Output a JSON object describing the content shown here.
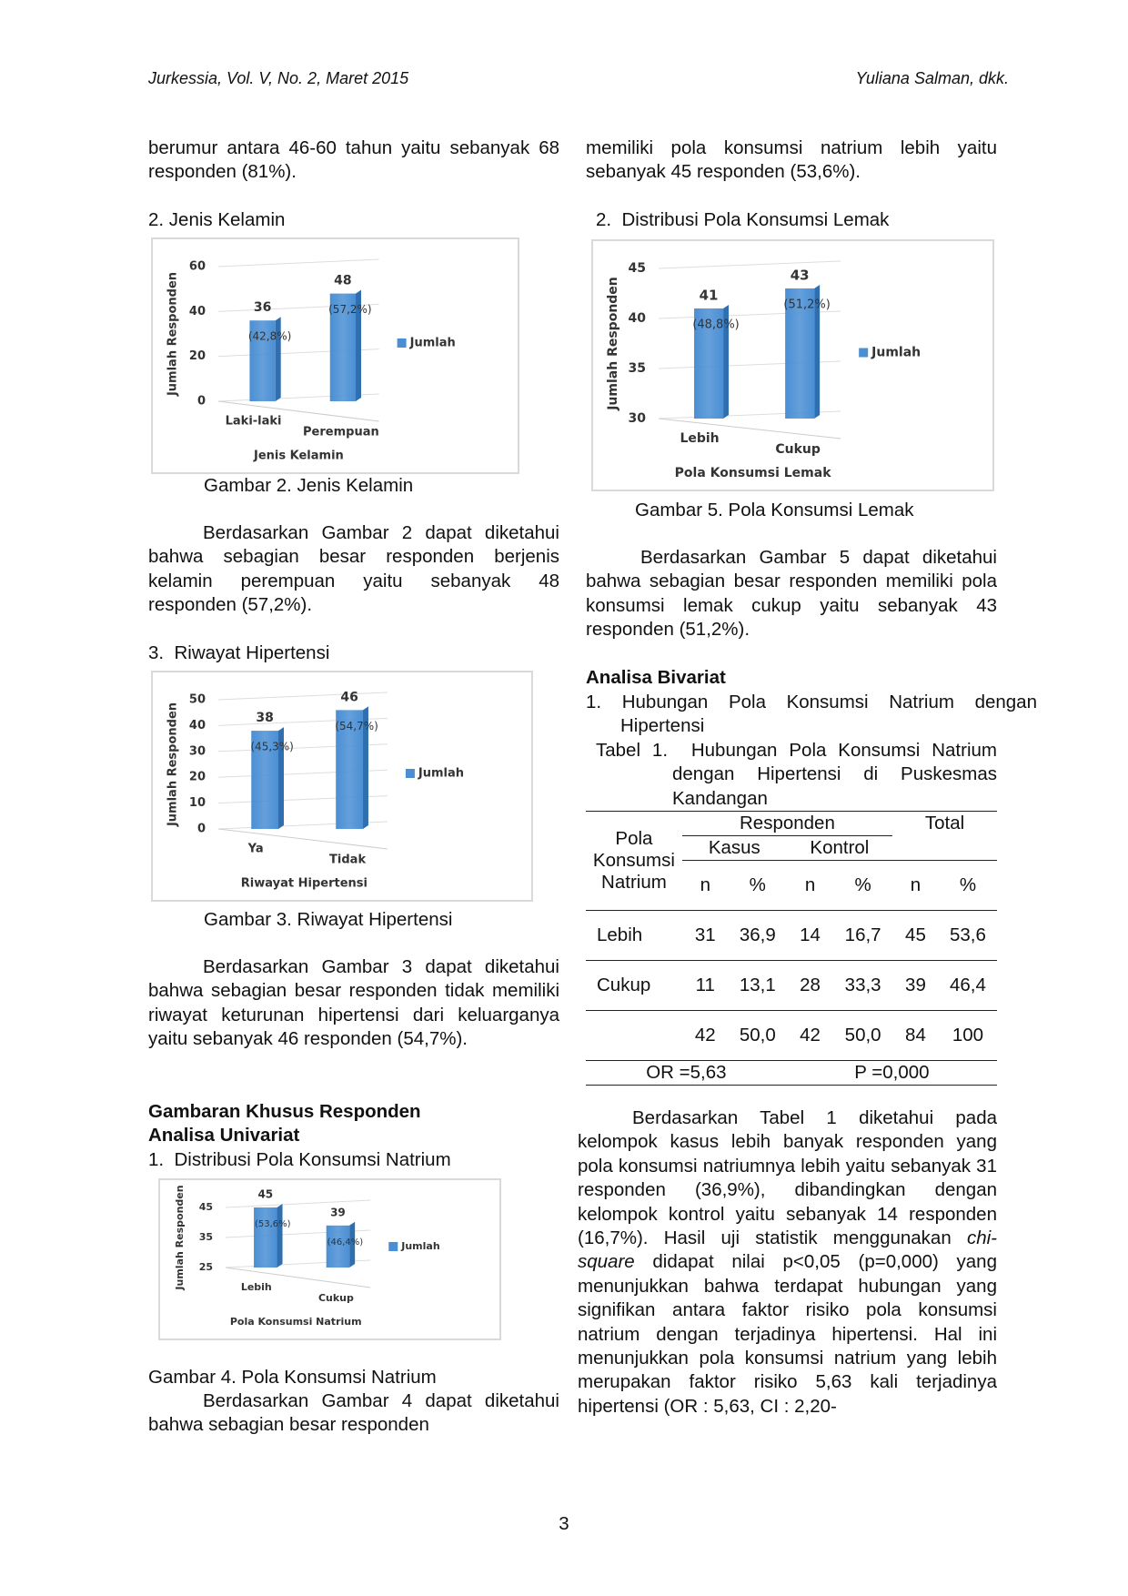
{
  "header": {
    "journal": "Jurkessia, Vol. V, No. 2, Maret 2015",
    "authors": "Yuliana Salman, dkk."
  },
  "left": {
    "p1": "berumur antara 46-60 tahun yaitu sebanyak 68 responden (81%).",
    "h_jk": "2. Jenis Kelamin",
    "p_jk": "Berdasarkan Gambar 2 dapat diketahui bahwa sebagian besar responden berjenis kelamin perempuan yaitu sebanyak 48 responden (57,2%).",
    "h_rh": "3.  Riwayat Hipertensi",
    "p_rh": "Berdasarkan Gambar 3 dapat diketahui bahwa sebagian besar responden tidak memiliki riwayat keturunan hipertensi dari keluarganya yaitu sebanyak 46 responden (54,7%).",
    "h_khusus": "Gambaran Khusus Responden",
    "h_univariat": "Analisa Univariat",
    "h_natrium": "1.  Distribusi Pola Konsumsi Natrium",
    "p_natrium": "Berdasarkan Gambar 4 dapat diketahui bahwa sebagian besar responden"
  },
  "right": {
    "p1": "memiliki pola konsumsi natrium lebih yaitu sebanyak 45 responden (53,6%).",
    "h_lemak": "2.  Distribusi Pola Konsumsi Lemak",
    "p_lemak": "Berdasarkan Gambar 5 dapat diketahui bahwa sebagian besar responden memiliki pola konsumsi lemak cukup yaitu sebanyak 43 responden (51,2%).",
    "h_bivariat": "Analisa Bivariat",
    "h_hubungan": "1. Hubungan Pola Konsumsi Natrium dengan Hipertensi",
    "p_last": [
      "Berdasarkan Tabel 1 diketahui pada kelompok kasus lebih banyak responden yang pola konsumsi natriumnya lebih yaitu sebanyak 31 responden (36,9%), dibandingkan dengan kelompok kontrol yaitu sebanyak 14 responden (16,7%). Hasil uji statistik menggunakan ",
      "chi-square",
      " didapat nilai p<0,05 (p=0,000) yang menunjukkan bahwa terdapat hubungan yang signifikan antara faktor risiko pola konsumsi natrium dengan terjadinya hipertensi. Hal ini menunjukkan pola konsumsi natrium yang lebih merupakan faktor risiko 5,63 kali terjadinya hipertensi (OR : 5,63, CI : 2,20-"
    ]
  },
  "figures": [
    {
      "type": "bar",
      "caption": "Gambar 2. Jenis Kelamin",
      "ylabel": "Jumlah Responden",
      "xlabel": "Jenis  Kelamin",
      "legend": "Jumlah",
      "color": "#4a8fd4",
      "categories": [
        "Laki-laki",
        "Perempuan"
      ],
      "values": [
        36,
        48
      ],
      "annotations": [
        "(42,8%)",
        "(57,2%)"
      ],
      "ylim": [
        0,
        60
      ],
      "yticks": [
        0,
        20,
        40,
        60
      ]
    },
    {
      "type": "bar",
      "caption": "Gambar 3. Riwayat Hipertensi",
      "ylabel": "Jumlah Responden",
      "xlabel": "Riwayat Hipertensi",
      "legend": "Jumlah",
      "color": "#4a8fd4",
      "categories": [
        "Ya",
        "Tidak"
      ],
      "values": [
        38,
        46
      ],
      "annotations": [
        "(45,3%)",
        "(54,7%)"
      ],
      "ylim": [
        0,
        50
      ],
      "yticks": [
        0,
        10,
        20,
        30,
        40,
        50
      ]
    },
    {
      "type": "bar",
      "caption": "Gambar 4. Pola Konsumsi Natrium",
      "ylabel": "Jumlah Responden",
      "xlabel": "Pola Konsumsi Natrium",
      "legend": "Jumlah",
      "color": "#4a8fd4",
      "categories": [
        "Lebih",
        "Cukup"
      ],
      "values": [
        45,
        39
      ],
      "annotations": [
        "(53,6%)",
        "(46,4%)"
      ],
      "ylim": [
        25,
        45
      ],
      "yticks": [
        25,
        35,
        45
      ]
    },
    {
      "type": "bar",
      "caption": "Gambar 5. Pola Konsumsi Lemak",
      "ylabel": "Jumlah Responden",
      "xlabel": "Pola Konsumsi Lemak",
      "legend": "Jumlah",
      "color": "#4a8fd4",
      "categories": [
        "Lebih",
        "Cukup"
      ],
      "values": [
        41,
        43
      ],
      "annotations": [
        "(48,8%)",
        "(51,2%)"
      ],
      "ylim": [
        30,
        45
      ],
      "yticks": [
        30,
        35,
        40,
        45
      ]
    }
  ],
  "table": {
    "caption": "Tabel 1.  Hubungan Pola Konsumsi Natrium dengan Hipertensi di Puskesmas Kandangan",
    "headers": {
      "row_label": "Pola Konsumsi Natrium",
      "responden": "Responden",
      "total": "Total",
      "kasus": "Kasus",
      "kontrol": "Kontrol",
      "columns": [
        "n",
        "%",
        "n",
        "%",
        "n",
        "%"
      ]
    },
    "rows": [
      {
        "label": "Lebih",
        "cells": [
          "31",
          "36,9",
          "14",
          "16,7",
          "45",
          "53,6"
        ]
      },
      {
        "label": "Cukup",
        "cells": [
          "11",
          "13,1",
          "28",
          "33,3",
          "39",
          "46,4"
        ]
      },
      {
        "cells": [
          "42",
          "50,0",
          "42",
          "50,0",
          "84",
          "100"
        ]
      }
    ],
    "footer": [
      "OR =5,63",
      "P =0,000"
    ]
  },
  "page_number": "3"
}
